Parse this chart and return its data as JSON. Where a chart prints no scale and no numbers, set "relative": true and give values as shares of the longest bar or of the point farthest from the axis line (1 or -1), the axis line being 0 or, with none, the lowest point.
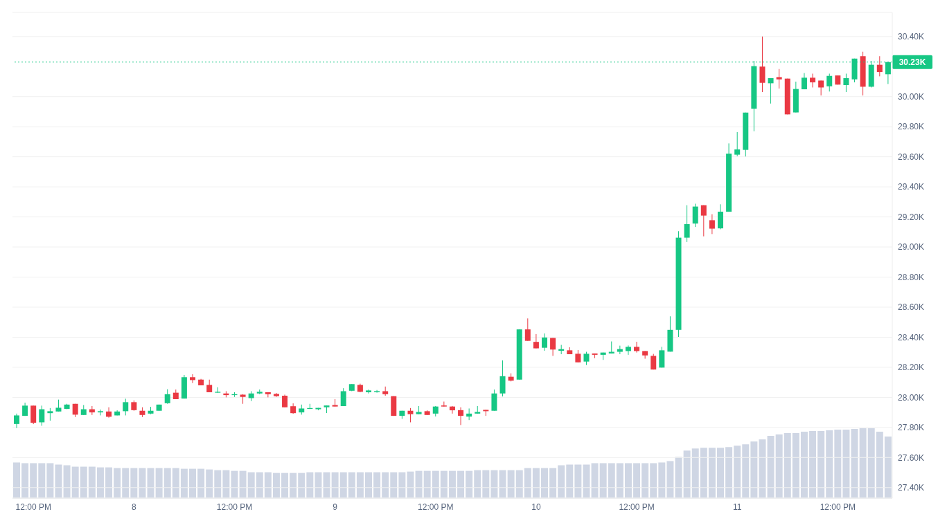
{
  "chart_data": [
    {
      "type": "candlestick",
      "categories": [
        null,
        null,
        "12:00 PM",
        null,
        null,
        null,
        null,
        null,
        null,
        null,
        null,
        null,
        null,
        null,
        "8",
        null,
        null,
        null,
        null,
        null,
        null,
        null,
        null,
        null,
        null,
        null,
        "12:00 PM",
        null,
        null,
        null,
        null,
        null,
        null,
        null,
        null,
        null,
        null,
        null,
        "9",
        null,
        null,
        null,
        null,
        null,
        null,
        null,
        null,
        null,
        null,
        null,
        "12:00 PM",
        null,
        null,
        null,
        null,
        null,
        null,
        null,
        null,
        null,
        null,
        null,
        "10",
        null,
        null,
        null,
        null,
        null,
        null,
        null,
        null,
        null,
        null,
        null,
        "12:00 PM",
        null,
        null,
        null,
        null,
        null,
        null,
        null,
        null,
        null,
        null,
        null,
        "11",
        null,
        null,
        null,
        null,
        null,
        null,
        null,
        null,
        null,
        null,
        null,
        "12:00 PM",
        null,
        null,
        null,
        null,
        null,
        null
      ],
      "ohlc": [
        [
          27823,
          27892,
          27796,
          27880
        ],
        [
          27877,
          27965,
          27877,
          27945
        ],
        [
          27945,
          27945,
          27822,
          27831
        ],
        [
          27834,
          27945,
          27811,
          27921
        ],
        [
          27895,
          27929,
          27845,
          27908
        ],
        [
          27906,
          27985,
          27906,
          27931
        ],
        [
          27923,
          27957,
          27922,
          27952
        ],
        [
          27957,
          27957,
          27869,
          27885
        ],
        [
          27883,
          27949,
          27883,
          27921
        ],
        [
          27921,
          27942,
          27883,
          27900
        ],
        [
          27900,
          27919,
          27880,
          27908
        ],
        [
          27906,
          27934,
          27865,
          27871
        ],
        [
          27880,
          27914,
          27880,
          27906
        ],
        [
          27908,
          27991,
          27880,
          27968
        ],
        [
          27968,
          27980,
          27911,
          27915
        ],
        [
          27911,
          27934,
          27869,
          27883
        ],
        [
          27892,
          27937,
          27888,
          27911
        ],
        [
          27911,
          27952,
          27911,
          27952
        ],
        [
          27961,
          28054,
          27957,
          28021
        ],
        [
          28031,
          28052,
          27988,
          27988
        ],
        [
          27992,
          28149,
          27992,
          28134
        ],
        [
          28134,
          28154,
          28095,
          28115
        ],
        [
          28118,
          28123,
          28080,
          28080
        ],
        [
          28083,
          28118,
          28034,
          28034
        ],
        [
          28031,
          28067,
          28031,
          28037
        ],
        [
          28026,
          28041,
          28000,
          28015
        ],
        [
          28015,
          28034,
          28003,
          28021
        ],
        [
          28018,
          28021,
          27957,
          28003
        ],
        [
          27995,
          28041,
          27975,
          28026
        ],
        [
          28026,
          28052,
          28021,
          28037
        ],
        [
          28034,
          28034,
          28000,
          28021
        ],
        [
          28023,
          28029,
          28003,
          28008
        ],
        [
          28011,
          28018,
          27934,
          27934
        ],
        [
          27941,
          27960,
          27891,
          27895
        ],
        [
          27900,
          27952,
          27885,
          27926
        ],
        [
          27923,
          27957,
          27923,
          27929
        ],
        [
          27921,
          27930,
          27914,
          27930
        ],
        [
          27934,
          27946,
          27896,
          27946
        ],
        [
          27949,
          27988,
          27939,
          27939
        ],
        [
          27942,
          28061,
          27942,
          28041
        ],
        [
          28044,
          28088,
          28041,
          28088
        ],
        [
          28083,
          28091,
          28034,
          28037
        ],
        [
          28034,
          28052,
          28026,
          28046
        ],
        [
          28034,
          28049,
          28031,
          28041
        ],
        [
          28041,
          28072,
          28011,
          28021
        ],
        [
          28008,
          28008,
          27877,
          27877
        ],
        [
          27877,
          27911,
          27857,
          27911
        ],
        [
          27911,
          27929,
          27834,
          27888
        ],
        [
          27888,
          27942,
          27888,
          27903
        ],
        [
          27908,
          27914,
          27883,
          27883
        ],
        [
          27892,
          27942,
          27873,
          27939
        ],
        [
          27946,
          27972,
          27939,
          27939
        ],
        [
          27939,
          27942,
          27892,
          27914
        ],
        [
          27915,
          27934,
          27816,
          27877
        ],
        [
          27872,
          27926,
          27849,
          27892
        ],
        [
          27892,
          27942,
          27892,
          27903
        ],
        [
          27917,
          27917,
          27877,
          27908
        ],
        [
          27911,
          28052,
          27911,
          28026
        ],
        [
          28026,
          28246,
          28006,
          28141
        ],
        [
          28137,
          28160,
          28106,
          28111
        ],
        [
          28118,
          28452,
          28118,
          28452
        ],
        [
          28452,
          28525,
          28376,
          28376
        ],
        [
          28369,
          28421,
          28326,
          28326
        ],
        [
          28330,
          28425,
          28310,
          28398
        ],
        [
          28395,
          28395,
          28276,
          28318
        ],
        [
          28310,
          28349,
          28287,
          28321
        ],
        [
          28313,
          28333,
          28287,
          28287
        ],
        [
          28290,
          28315,
          28233,
          28233
        ],
        [
          28238,
          28303,
          28215,
          28290
        ],
        [
          28292,
          28292,
          28261,
          28283
        ],
        [
          28283,
          28298,
          28249,
          28298
        ],
        [
          28292,
          28372,
          28292,
          28303
        ],
        [
          28303,
          28344,
          28287,
          28321
        ],
        [
          28308,
          28345,
          28283,
          28336
        ],
        [
          28336,
          28370,
          28298,
          28308
        ],
        [
          28308,
          28308,
          28257,
          28279
        ],
        [
          28276,
          28289,
          28185,
          28185
        ],
        [
          28198,
          28336,
          28198,
          28313
        ],
        [
          28304,
          28539,
          28304,
          28449
        ],
        [
          28449,
          29105,
          28402,
          29062
        ],
        [
          29062,
          29278,
          29033,
          29152
        ],
        [
          29156,
          29288,
          29133,
          29269
        ],
        [
          29278,
          29278,
          29071,
          29209
        ],
        [
          29178,
          29218,
          29086,
          29122
        ],
        [
          29124,
          29284,
          29118,
          29235
        ],
        [
          29235,
          29689,
          29235,
          29621
        ],
        [
          29614,
          29764,
          29604,
          29649
        ],
        [
          29646,
          29894,
          29602,
          29894
        ],
        [
          29920,
          30238,
          29770,
          30203
        ],
        [
          30200,
          30400,
          30031,
          30092
        ],
        [
          30089,
          30123,
          29954,
          30123
        ],
        [
          30130,
          30184,
          30054,
          30115
        ],
        [
          30120,
          30120,
          29882,
          29882
        ],
        [
          29895,
          30100,
          29895,
          30051
        ],
        [
          30049,
          30157,
          30049,
          30126
        ],
        [
          30126,
          30153,
          30061,
          30095
        ],
        [
          30107,
          30107,
          30008,
          30061
        ],
        [
          30069,
          30153,
          30034,
          30138
        ],
        [
          30141,
          30141,
          30080,
          30080
        ],
        [
          30077,
          30153,
          30031,
          30123
        ],
        [
          30115,
          30253,
          30095,
          30253
        ],
        [
          30269,
          30299,
          30008,
          30066
        ],
        [
          30066,
          30238,
          30061,
          30212
        ],
        [
          30212,
          30269,
          30135,
          30164
        ],
        [
          30149,
          30230,
          30084,
          30230
        ]
      ],
      "colors": [
        "#16c784",
        "#16c784",
        "#ea3943",
        "#16c784",
        "#16c784",
        "#16c784",
        "#16c784",
        "#ea3943",
        "#16c784",
        "#ea3943",
        "#16c784",
        "#ea3943",
        "#16c784",
        "#16c784",
        "#ea3943",
        "#ea3943",
        "#16c784",
        "#16c784",
        "#16c784",
        "#ea3943",
        "#16c784",
        "#ea3943",
        "#ea3943",
        "#ea3943",
        "#16c784",
        "#ea3943",
        "#16c784",
        "#ea3943",
        "#16c784",
        "#16c784",
        "#ea3943",
        "#ea3943",
        "#ea3943",
        "#ea3943",
        "#16c784",
        "#16c784",
        "#16c784",
        "#16c784",
        "#ea3943",
        "#16c784",
        "#16c784",
        "#ea3943",
        "#16c784",
        "#16c784",
        "#ea3943",
        "#ea3943",
        "#16c784",
        "#ea3943",
        "#16c784",
        "#ea3943",
        "#16c784",
        "#ea3943",
        "#ea3943",
        "#ea3943",
        "#16c784",
        "#16c784",
        "#ea3943",
        "#16c784",
        "#16c784",
        "#ea3943",
        "#16c784",
        "#ea3943",
        "#ea3943",
        "#16c784",
        "#ea3943",
        "#16c784",
        "#ea3943",
        "#ea3943",
        "#16c784",
        "#ea3943",
        "#16c784",
        "#16c784",
        "#16c784",
        "#16c784",
        "#ea3943",
        "#ea3943",
        "#ea3943",
        "#16c784",
        "#16c784",
        "#16c784",
        "#16c784",
        "#16c784",
        "#ea3943",
        "#ea3943",
        "#16c784",
        "#16c784",
        "#16c784",
        "#16c784",
        "#16c784",
        "#ea3943",
        "#16c784",
        "#ea3943",
        "#ea3943",
        "#16c784",
        "#16c784",
        "#ea3943",
        "#ea3943",
        "#16c784",
        "#ea3943",
        "#16c784",
        "#16c784",
        "#ea3943",
        "#16c784",
        "#ea3943",
        "#16c784"
      ],
      "ylim": [
        27330,
        30560
      ],
      "yticks": [
        {
          "value": 27400,
          "label": "27.40K"
        },
        {
          "value": 27600,
          "label": "27.60K"
        },
        {
          "value": 27800,
          "label": "27.80K"
        },
        {
          "value": 28000,
          "label": "28.00K"
        },
        {
          "value": 28200,
          "label": "28.20K"
        },
        {
          "value": 28400,
          "label": "28.40K"
        },
        {
          "value": 28600,
          "label": "28.60K"
        },
        {
          "value": 28800,
          "label": "28.80K"
        },
        {
          "value": 29000,
          "label": "29.00K"
        },
        {
          "value": 29200,
          "label": "29.20K"
        },
        {
          "value": 29400,
          "label": "29.40K"
        },
        {
          "value": 29600,
          "label": "29.60K"
        },
        {
          "value": 29800,
          "label": "29.80K"
        },
        {
          "value": 30000,
          "label": "30.00K"
        },
        {
          "value": 30400,
          "label": "30.40K"
        }
      ],
      "grid": "y",
      "ref_lines": [
        {
          "axis": "y",
          "value": 30230,
          "label": "30.23K",
          "color": "#16c784",
          "line_style": "dotted"
        }
      ]
    },
    {
      "type": "bar",
      "relative": true,
      "color": "#cfd6e4",
      "categories": [
        null,
        null,
        null,
        null,
        null,
        null,
        null,
        null,
        null,
        null,
        null,
        null,
        null,
        null,
        null,
        null,
        null,
        null,
        null,
        null,
        null,
        null,
        null,
        null,
        null,
        null,
        null,
        null,
        null,
        null,
        null,
        null,
        null,
        null,
        null,
        null,
        null,
        null,
        null,
        null,
        null,
        null,
        null,
        null,
        null,
        null,
        null,
        null,
        null,
        null,
        null,
        null,
        null,
        null,
        null,
        null,
        null,
        null,
        null,
        null,
        null,
        null,
        null,
        null,
        null,
        null,
        null,
        null,
        null,
        null,
        null,
        null,
        null,
        null,
        null,
        null,
        null,
        null,
        null,
        null,
        null,
        null,
        null,
        null,
        null,
        null,
        null,
        null,
        null,
        null,
        null,
        null,
        null,
        null,
        null,
        null,
        null,
        null,
        null,
        null,
        null,
        null,
        null,
        null,
        null
      ],
      "values": [
        0.51,
        0.5,
        0.5,
        0.5,
        0.5,
        0.48,
        0.47,
        0.45,
        0.45,
        0.45,
        0.44,
        0.44,
        0.43,
        0.43,
        0.43,
        0.43,
        0.43,
        0.43,
        0.43,
        0.43,
        0.42,
        0.42,
        0.42,
        0.41,
        0.4,
        0.4,
        0.39,
        0.39,
        0.37,
        0.37,
        0.37,
        0.36,
        0.36,
        0.36,
        0.36,
        0.37,
        0.37,
        0.37,
        0.37,
        0.37,
        0.37,
        0.37,
        0.37,
        0.37,
        0.37,
        0.37,
        0.37,
        0.38,
        0.39,
        0.39,
        0.39,
        0.39,
        0.39,
        0.39,
        0.39,
        0.4,
        0.4,
        0.4,
        0.4,
        0.4,
        0.4,
        0.43,
        0.43,
        0.43,
        0.43,
        0.47,
        0.48,
        0.48,
        0.48,
        0.5,
        0.5,
        0.5,
        0.5,
        0.5,
        0.5,
        0.5,
        0.5,
        0.51,
        0.53,
        0.59,
        0.68,
        0.71,
        0.72,
        0.72,
        0.72,
        0.73,
        0.75,
        0.77,
        0.81,
        0.84,
        0.89,
        0.91,
        0.93,
        0.93,
        0.95,
        0.96,
        0.96,
        0.97,
        0.98,
        0.98,
        0.99,
        1,
        1,
        0.95,
        0.88
      ]
    }
  ]
}
